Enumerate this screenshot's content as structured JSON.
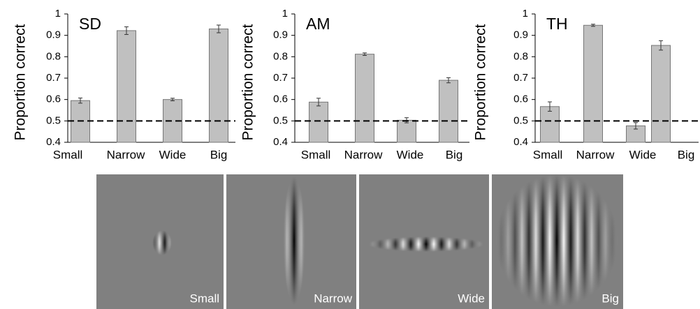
{
  "chart_data": [
    {
      "type": "bar",
      "title": "SD",
      "ylabel": "Proportion correct",
      "categories": [
        "Small",
        "Narrow",
        "Wide",
        "Big"
      ],
      "values": [
        0.595,
        0.922,
        0.6,
        0.93
      ],
      "errors": [
        0.012,
        0.018,
        0.006,
        0.018
      ],
      "color": "#c0c0c0",
      "ylim": [
        0.4,
        1
      ],
      "yticks": [
        0.4,
        0.5,
        0.6,
        0.7,
        0.8,
        0.9,
        1
      ],
      "reference_line": 0.5
    },
    {
      "type": "bar",
      "title": "AM",
      "ylabel": "Proportion correct",
      "categories": [
        "Small",
        "Narrow",
        "Wide",
        "Big"
      ],
      "values": [
        0.588,
        0.812,
        0.503,
        0.69
      ],
      "errors": [
        0.018,
        0.006,
        0.012,
        0.012
      ],
      "color": "#c0c0c0",
      "ylim": [
        0.4,
        1
      ],
      "yticks": [
        0.4,
        0.5,
        0.6,
        0.7,
        0.8,
        0.9,
        1
      ],
      "reference_line": 0.5
    },
    {
      "type": "bar",
      "title": "TH",
      "ylabel": "Proportion correct",
      "categories": [
        "Small",
        "Narrow",
        "Wide",
        "Big"
      ],
      "values": [
        0.567,
        0.947,
        0.477,
        0.853
      ],
      "errors": [
        0.022,
        0.005,
        0.015,
        0.022
      ],
      "color": "#c0c0c0",
      "ylim": [
        0.4,
        1
      ],
      "yticks": [
        0.4,
        0.5,
        0.6,
        0.7,
        0.8,
        0.9,
        1
      ],
      "reference_line": 0.5
    }
  ],
  "stimuli": [
    {
      "label": "Small"
    },
    {
      "label": "Narrow"
    },
    {
      "label": "Wide"
    },
    {
      "label": "Big"
    }
  ]
}
